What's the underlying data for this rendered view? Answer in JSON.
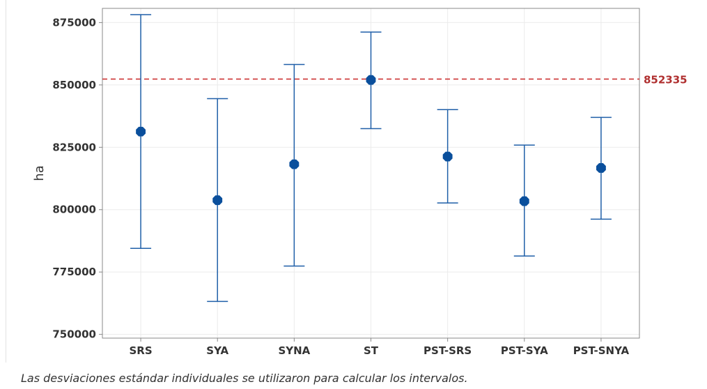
{
  "chart_data": {
    "type": "interval",
    "ylabel": "ha",
    "xlabel": "",
    "title": "",
    "categories": [
      "SRS",
      "SYA",
      "SYNA",
      "ST",
      "PST-SRS",
      "PST-SYA",
      "PST-SNYA"
    ],
    "points": [
      {
        "mean": 831300,
        "lower": 784500,
        "upper": 878200
      },
      {
        "mean": 803800,
        "lower": 763200,
        "upper": 844500
      },
      {
        "mean": 818200,
        "lower": 777400,
        "upper": 858200
      },
      {
        "mean": 852000,
        "lower": 832500,
        "upper": 871200
      },
      {
        "mean": 821300,
        "lower": 802700,
        "upper": 840100
      },
      {
        "mean": 803400,
        "lower": 781400,
        "upper": 825900
      },
      {
        "mean": 816700,
        "lower": 796200,
        "upper": 837000
      }
    ],
    "ylim": [
      748500,
      880700
    ],
    "yticks": [
      750000,
      775000,
      800000,
      825000,
      850000,
      875000
    ],
    "reference_line": {
      "value": 852335,
      "label": "852335"
    },
    "grid": true,
    "colors": {
      "series": "#1f5fa8",
      "marker": "#0a4f9c",
      "reference": "#cc3333",
      "grid": "#ebebeb",
      "frame": "#888888"
    }
  },
  "footnote": "Las desviaciones estándar individuales se utilizaron para calcular los intervalos."
}
